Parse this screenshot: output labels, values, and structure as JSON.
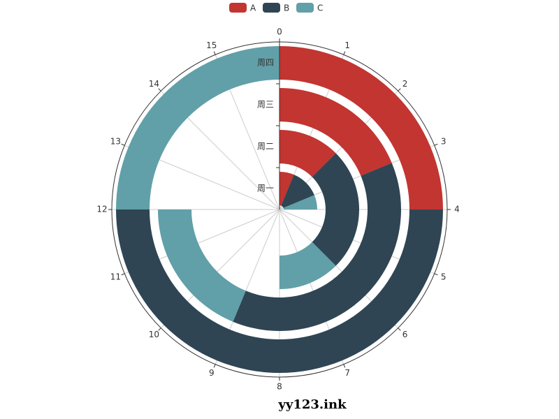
{
  "chart_data": {
    "type": "polar-bar",
    "categories": [
      "周一",
      "周二",
      "周三",
      "周四"
    ],
    "series": [
      {
        "name": "A",
        "color": "#c23531",
        "values": [
          1,
          2,
          3,
          4
        ]
      },
      {
        "name": "B",
        "color": "#2f4554",
        "values": [
          2,
          4,
          6,
          8
        ]
      },
      {
        "name": "C",
        "color": "#61a0a8",
        "values": [
          1,
          2,
          3,
          4
        ]
      }
    ],
    "xlim": [
      0,
      16
    ],
    "xticks": [
      0,
      1,
      2,
      3,
      4,
      5,
      6,
      7,
      8,
      9,
      10,
      11,
      12,
      13,
      14,
      15
    ],
    "grid": true,
    "legend": "top",
    "watermark": "yy123.ink"
  }
}
